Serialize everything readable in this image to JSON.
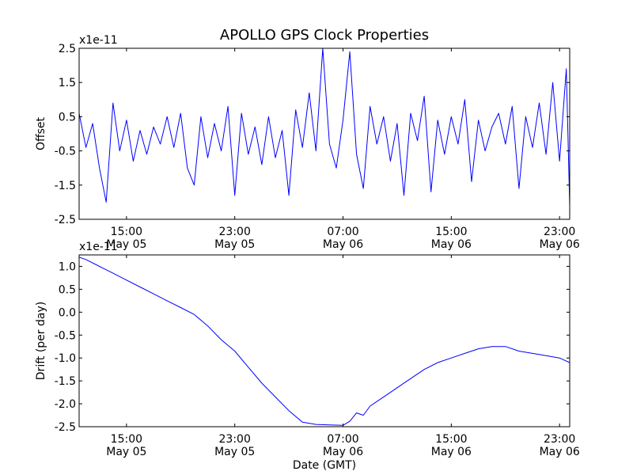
{
  "title": "APOLLO GPS Clock Properties",
  "chart_data": [
    {
      "type": "line",
      "ylabel": "Offset",
      "xlabel": "",
      "scale_label": "x1e-11",
      "line_color": "#0000ff",
      "x_start": "2009-05-05 11:30",
      "x_end": "2009-05-06 23:45",
      "ylim": [
        -2.5,
        2.5
      ],
      "yticks": [
        2.5,
        1.5,
        0.5,
        -0.5,
        -1.5,
        -2.5
      ],
      "ytick_labels": [
        "2.5",
        "1.5",
        "0.5",
        "-0.5",
        "-1.5",
        "-2.5"
      ],
      "xticks": [
        "2009-05-05 15:00",
        "2009-05-05 23:00",
        "2009-05-06 07:00",
        "2009-05-06 15:00",
        "2009-05-06 23:00"
      ],
      "xtick_labels": [
        {
          "time": "15:00",
          "date": "May 05"
        },
        {
          "time": "23:00",
          "date": "May 05"
        },
        {
          "time": "07:00",
          "date": "May 06"
        },
        {
          "time": "15:00",
          "date": "May 06"
        },
        {
          "time": "23:00",
          "date": "May 06"
        }
      ],
      "series": [
        {
          "x": [
            "2009-05-05 11:30",
            "2009-05-05 12:00",
            "2009-05-05 12:30",
            "2009-05-05 13:00",
            "2009-05-05 13:30",
            "2009-05-05 14:00",
            "2009-05-05 14:30",
            "2009-05-05 15:00",
            "2009-05-05 15:30",
            "2009-05-05 16:00",
            "2009-05-05 16:30",
            "2009-05-05 17:00",
            "2009-05-05 17:30",
            "2009-05-05 18:00",
            "2009-05-05 18:30",
            "2009-05-05 19:00",
            "2009-05-05 19:30",
            "2009-05-05 20:00",
            "2009-05-05 20:30",
            "2009-05-05 21:00",
            "2009-05-05 21:30",
            "2009-05-05 22:00",
            "2009-05-05 22:30",
            "2009-05-05 23:00",
            "2009-05-05 23:30",
            "2009-05-06 00:00",
            "2009-05-06 00:30",
            "2009-05-06 01:00",
            "2009-05-06 01:30",
            "2009-05-06 02:00",
            "2009-05-06 02:30",
            "2009-05-06 03:00",
            "2009-05-06 03:30",
            "2009-05-06 04:00",
            "2009-05-06 04:30",
            "2009-05-06 05:00",
            "2009-05-06 05:30",
            "2009-05-06 06:00",
            "2009-05-06 06:30",
            "2009-05-06 07:00",
            "2009-05-06 07:30",
            "2009-05-06 08:00",
            "2009-05-06 08:30",
            "2009-05-06 09:00",
            "2009-05-06 09:30",
            "2009-05-06 10:00",
            "2009-05-06 10:30",
            "2009-05-06 11:00",
            "2009-05-06 11:30",
            "2009-05-06 12:00",
            "2009-05-06 12:30",
            "2009-05-06 13:00",
            "2009-05-06 13:30",
            "2009-05-06 14:00",
            "2009-05-06 14:30",
            "2009-05-06 15:00",
            "2009-05-06 15:30",
            "2009-05-06 16:00",
            "2009-05-06 16:30",
            "2009-05-06 17:00",
            "2009-05-06 17:30",
            "2009-05-06 18:00",
            "2009-05-06 18:30",
            "2009-05-06 19:00",
            "2009-05-06 19:30",
            "2009-05-06 20:00",
            "2009-05-06 20:30",
            "2009-05-06 21:00",
            "2009-05-06 21:30",
            "2009-05-06 22:00",
            "2009-05-06 22:30",
            "2009-05-06 23:00",
            "2009-05-06 23:30",
            "2009-05-06 23:45"
          ],
          "values": [
            0.6,
            -0.4,
            0.3,
            -1.0,
            -2.0,
            0.9,
            -0.5,
            0.4,
            -0.8,
            0.1,
            -0.6,
            0.2,
            -0.3,
            0.5,
            -0.4,
            0.6,
            -1.0,
            -1.5,
            0.5,
            -0.7,
            0.3,
            -0.5,
            0.8,
            -1.8,
            0.6,
            -0.6,
            0.2,
            -0.9,
            0.5,
            -0.7,
            0.1,
            -1.8,
            0.7,
            -0.4,
            1.2,
            -0.5,
            2.5,
            -0.3,
            -1.0,
            0.4,
            2.4,
            -0.6,
            -1.6,
            0.8,
            -0.3,
            0.5,
            -0.8,
            0.3,
            -1.8,
            0.6,
            -0.2,
            1.1,
            -1.7,
            0.4,
            -0.6,
            0.5,
            -0.3,
            1.0,
            -1.4,
            0.4,
            -0.5,
            0.2,
            0.6,
            -0.3,
            0.8,
            -1.6,
            0.5,
            -0.4,
            0.9,
            -0.6,
            1.5,
            -0.8,
            1.9,
            -2.1
          ]
        }
      ]
    },
    {
      "type": "line",
      "ylabel": "Drift (per day)",
      "xlabel": "Date (GMT)",
      "scale_label": "x1e-11",
      "line_color": "#0000ff",
      "x_start": "2009-05-05 11:30",
      "x_end": "2009-05-06 23:45",
      "ylim": [
        -2.5,
        1.25
      ],
      "yticks": [
        1.0,
        0.5,
        0.0,
        -0.5,
        -1.0,
        -1.5,
        -2.0,
        -2.5
      ],
      "ytick_labels": [
        "1.0",
        "0.5",
        "0.0",
        "-0.5",
        "-1.0",
        "-1.5",
        "-2.0",
        "-2.5"
      ],
      "xticks": [
        "2009-05-05 15:00",
        "2009-05-05 23:00",
        "2009-05-06 07:00",
        "2009-05-06 15:00",
        "2009-05-06 23:00"
      ],
      "xtick_labels": [
        {
          "time": "15:00",
          "date": "May 05"
        },
        {
          "time": "23:00",
          "date": "May 05"
        },
        {
          "time": "07:00",
          "date": "May 06"
        },
        {
          "time": "15:00",
          "date": "May 06"
        },
        {
          "time": "23:00",
          "date": "May 06"
        }
      ],
      "series": [
        {
          "x": [
            "2009-05-05 11:30",
            "2009-05-05 12:00",
            "2009-05-05 13:00",
            "2009-05-05 14:00",
            "2009-05-05 15:00",
            "2009-05-05 16:00",
            "2009-05-05 17:00",
            "2009-05-05 18:00",
            "2009-05-05 19:00",
            "2009-05-05 20:00",
            "2009-05-05 21:00",
            "2009-05-05 22:00",
            "2009-05-05 23:00",
            "2009-05-06 00:00",
            "2009-05-06 01:00",
            "2009-05-06 02:00",
            "2009-05-06 03:00",
            "2009-05-06 04:00",
            "2009-05-06 05:00",
            "2009-05-06 06:00",
            "2009-05-06 07:00",
            "2009-05-06 07:30",
            "2009-05-06 08:00",
            "2009-05-06 08:30",
            "2009-05-06 09:00",
            "2009-05-06 10:00",
            "2009-05-06 11:00",
            "2009-05-06 12:00",
            "2009-05-06 13:00",
            "2009-05-06 14:00",
            "2009-05-06 15:00",
            "2009-05-06 16:00",
            "2009-05-06 17:00",
            "2009-05-06 18:00",
            "2009-05-06 19:00",
            "2009-05-06 20:00",
            "2009-05-06 21:00",
            "2009-05-06 22:00",
            "2009-05-06 23:00",
            "2009-05-06 23:45"
          ],
          "values": [
            1.2,
            1.15,
            1.0,
            0.85,
            0.7,
            0.55,
            0.4,
            0.25,
            0.1,
            -0.05,
            -0.3,
            -0.6,
            -0.85,
            -1.2,
            -1.55,
            -1.85,
            -2.15,
            -2.4,
            -2.45,
            -2.46,
            -2.47,
            -2.38,
            -2.2,
            -2.25,
            -2.05,
            -1.85,
            -1.65,
            -1.45,
            -1.25,
            -1.1,
            -1.0,
            -0.9,
            -0.8,
            -0.75,
            -0.75,
            -0.85,
            -0.9,
            -0.95,
            -1.0,
            -1.1
          ]
        }
      ]
    }
  ]
}
